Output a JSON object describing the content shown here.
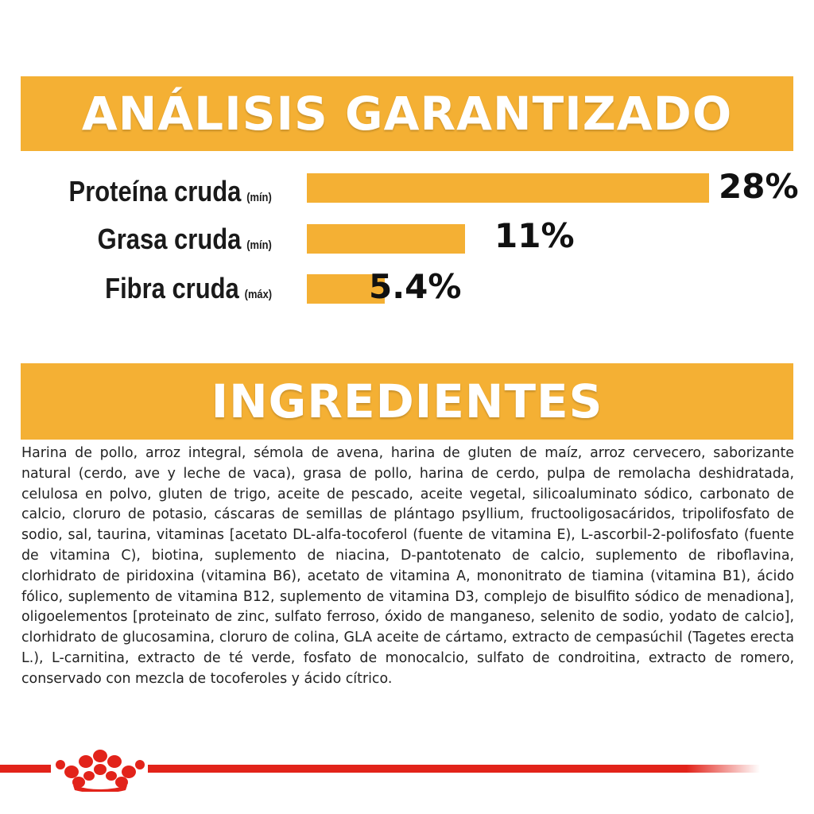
{
  "analysis": {
    "title": "ANÁLISIS GARANTIZADO",
    "rows": [
      {
        "label": "Proteína cruda",
        "qualifier": "(mín)",
        "value": "28%",
        "fraction": 1.0
      },
      {
        "label": "Grasa cruda",
        "qualifier": "(mín)",
        "value": "11%",
        "fraction": 0.393
      },
      {
        "label": "Fibra cruda",
        "qualifier": "(máx)",
        "value": "5.4%",
        "fraction": 0.193
      }
    ]
  },
  "ingredients": {
    "title": "INGREDIENTES",
    "text": "Harina de pollo, arroz integral, sémola de avena, harina de gluten de maíz, arroz cervecero, saborizante natural (cerdo, ave y leche de vaca), grasa de pollo, harina de cerdo, pulpa de remolacha deshidratada, celulosa en polvo, gluten de trigo, aceite de pescado, aceite vegetal, silicoaluminato sódico, carbonato de calcio, cloruro de potasio, cáscaras de semillas de plántago psyllium, fructooligosacáridos, tripolifosfato de sodio, sal, taurina, vitaminas [acetato DL-alfa-tocoferol (fuente de vitamina E), L-ascorbil-2-polifosfato (fuente de vitamina C), biotina, suplemento de niacina, D-pantotenato de calcio, suplemento de riboflavina, clorhidrato de piridoxina (vitamina B6), acetato de vitamina A, mononitrato de tiamina (vitamina B1), ácido fólico, suplemento de vitamina B12, suplemento de vitamina D3, complejo de bisulfito sódico de menadiona], oligoelementos [proteinato de zinc, sulfato ferroso, óxido de manganeso, selenito de sodio, yodato de calcio], clorhidrato de glucosamina, cloruro de colina, GLA aceite de cártamo, extracto de cempasúchil (Tagetes erecta L.), L-carnitina, extracto de té verde, fosfato de monocalcio, sulfato de condroitina, extracto de romero, conservado con mezcla de tocoferoles y ácido cítrico."
  },
  "colors": {
    "accent": "#f4b034",
    "brand": "#e2231a"
  },
  "footer": {
    "logo_icon": "royal-canin-crown-icon"
  }
}
